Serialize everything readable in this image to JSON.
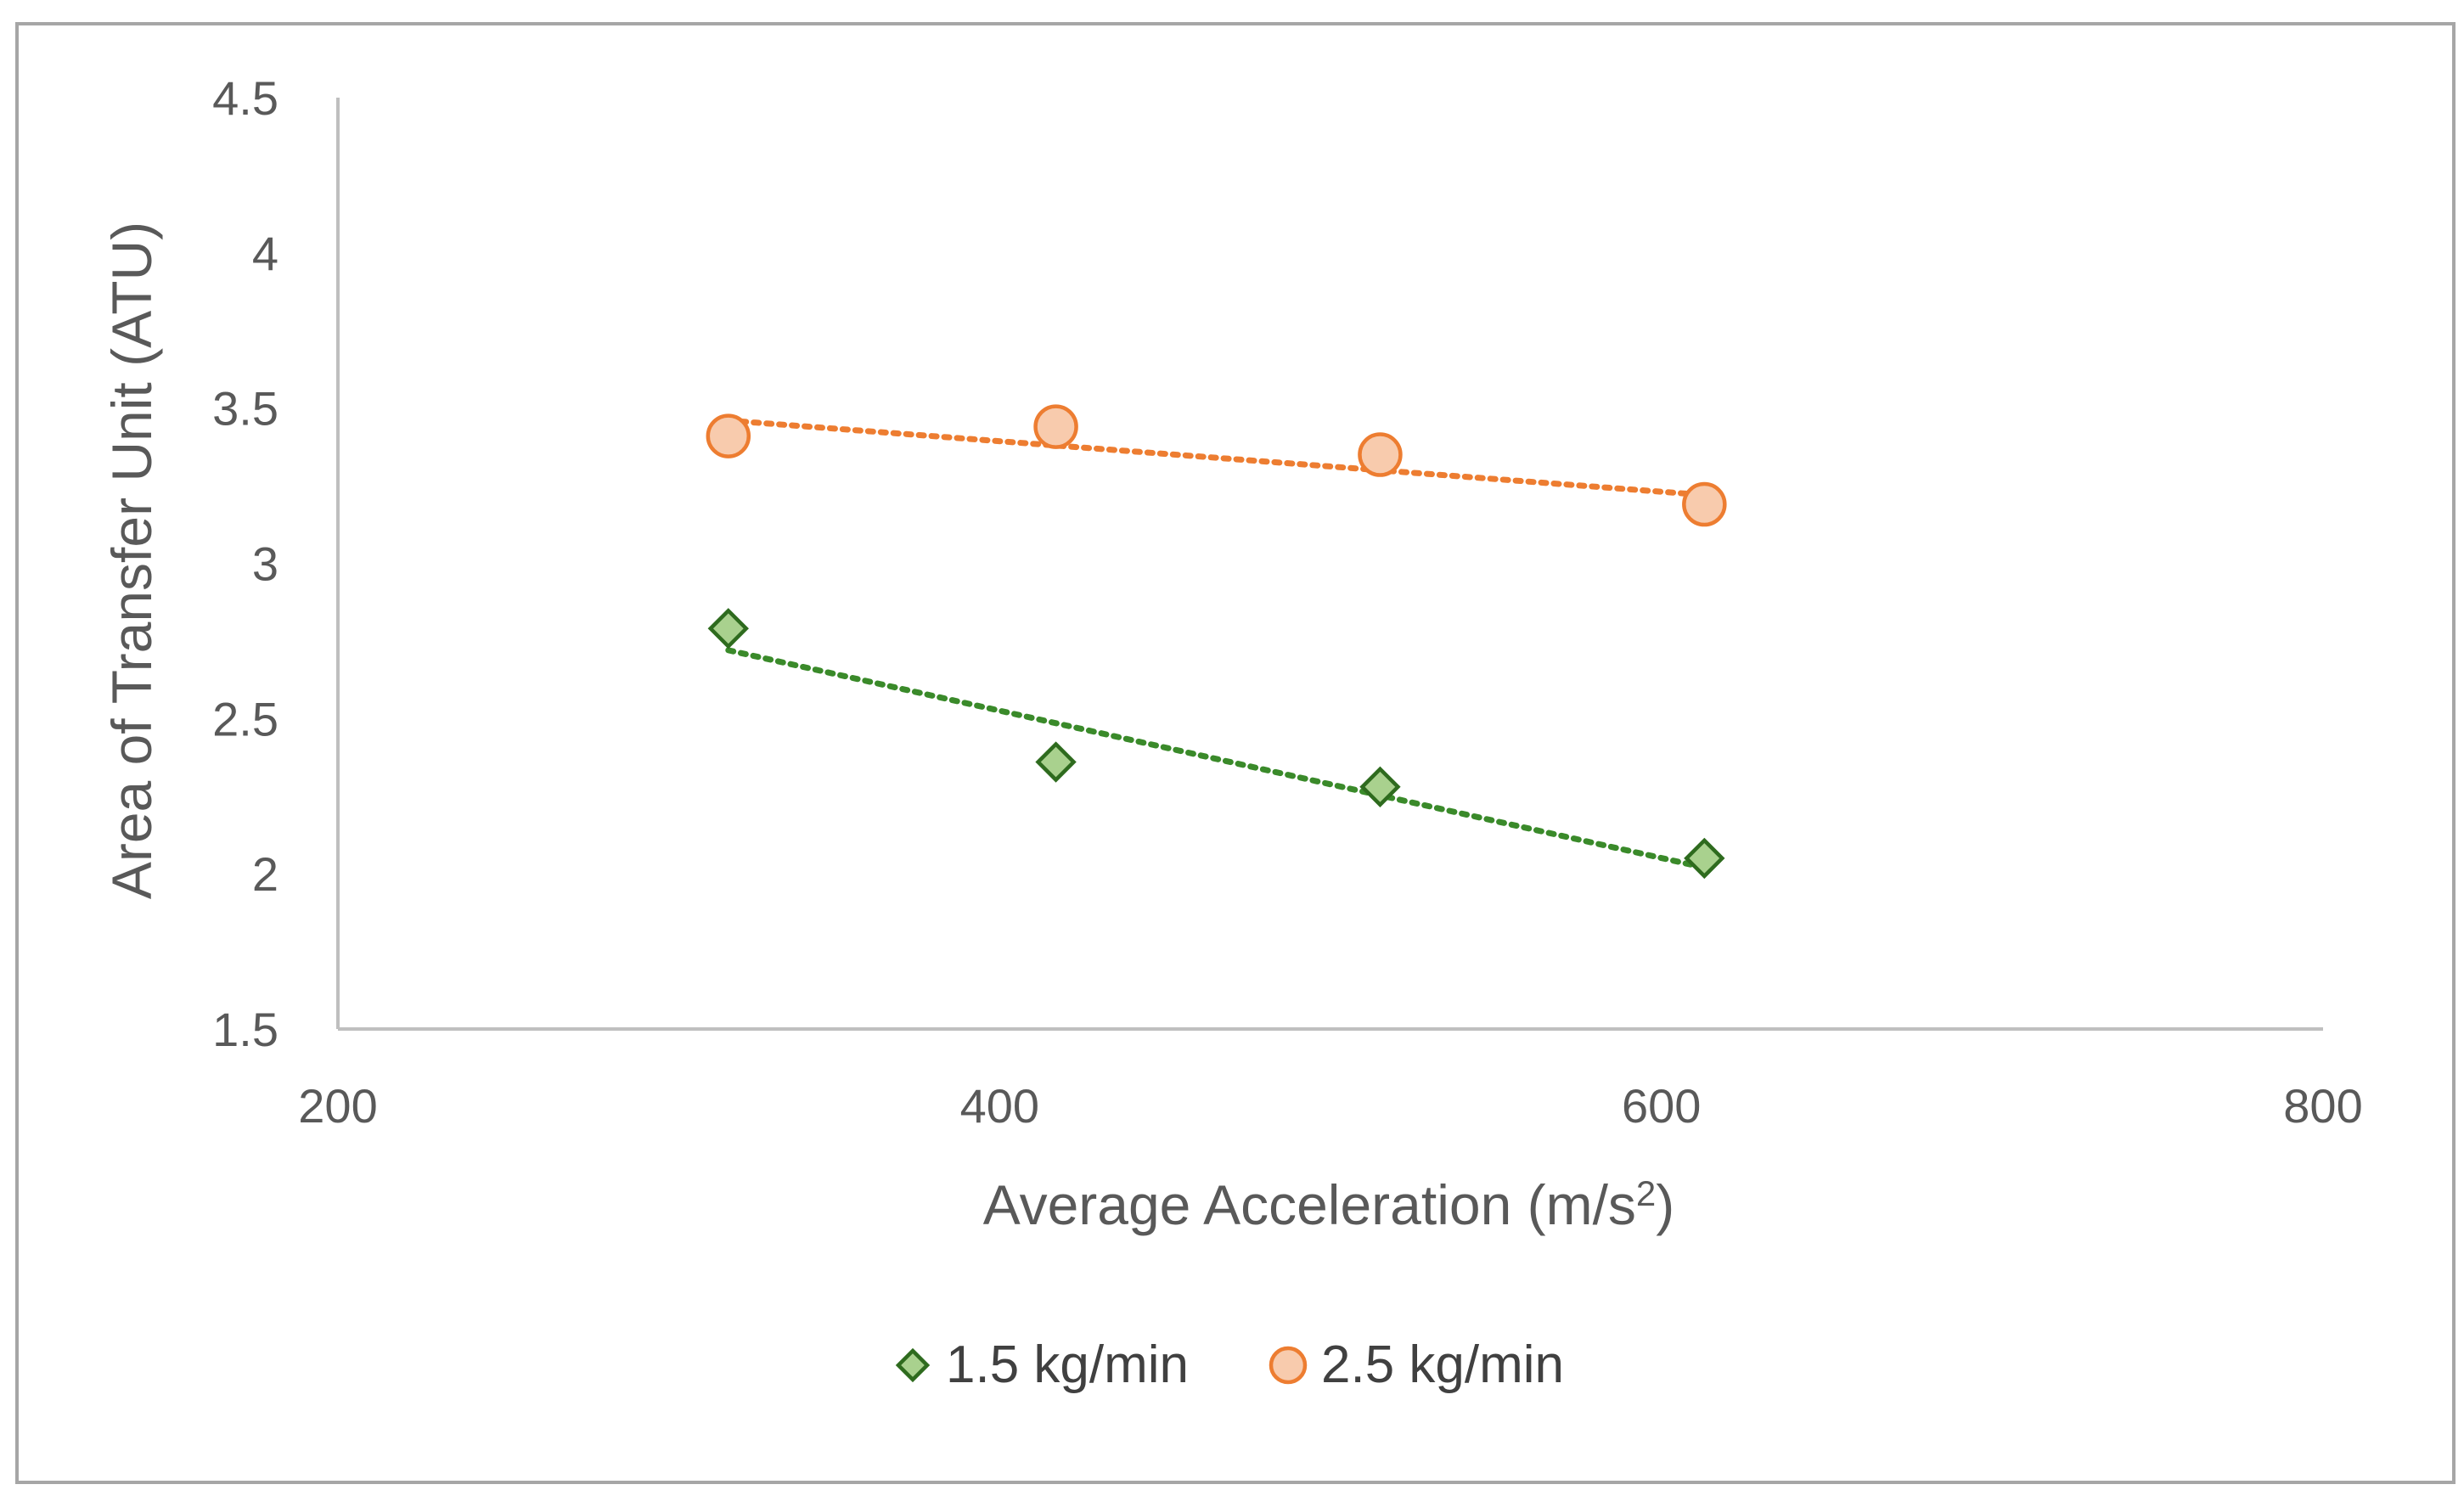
{
  "chart_data": {
    "type": "scatter",
    "title": "",
    "xlabel": "Average Acceleration (m/s",
    "xlabel_sup": "2",
    "xlabel_close": ")",
    "ylabel": "Area of Transfer Unit (ATU)",
    "xlim": [
      200,
      800
    ],
    "ylim": [
      1.5,
      4.5
    ],
    "xticks": [
      200,
      400,
      600,
      800
    ],
    "xtick_labels": [
      "200",
      "400",
      "600",
      "800"
    ],
    "yticks": [
      1.5,
      2,
      2.5,
      3,
      3.5,
      4,
      4.5
    ],
    "ytick_labels": [
      "1.5",
      "2",
      "2.5",
      "3",
      "3.5",
      "4",
      "4.5"
    ],
    "grid": false,
    "legend_position": "bottom",
    "series": [
      {
        "name": "1.5 kg/min",
        "marker": "diamond",
        "marker_fill": "#a9d18e",
        "marker_edge": "#2e6b1e",
        "trend_color": "#3a8a2a",
        "x": [
          318,
          417,
          515,
          613
        ],
        "y": [
          2.79,
          2.36,
          2.28,
          2.05
        ],
        "trendline": {
          "x": [
            318,
            613
          ],
          "y": [
            2.72,
            2.02
          ]
        }
      },
      {
        "name": "2.5 kg/min",
        "marker": "circle",
        "marker_fill": "#f8cbad",
        "marker_edge": "#ed7d31",
        "trend_color": "#ed7d31",
        "x": [
          318,
          417,
          515,
          613
        ],
        "y": [
          3.41,
          3.44,
          3.35,
          3.19
        ],
        "trendline": {
          "x": [
            318,
            613
          ],
          "y": [
            3.46,
            3.22
          ]
        }
      }
    ],
    "colors": {
      "axis": "#bfbfbf",
      "frame": "#a6a6a6"
    }
  }
}
